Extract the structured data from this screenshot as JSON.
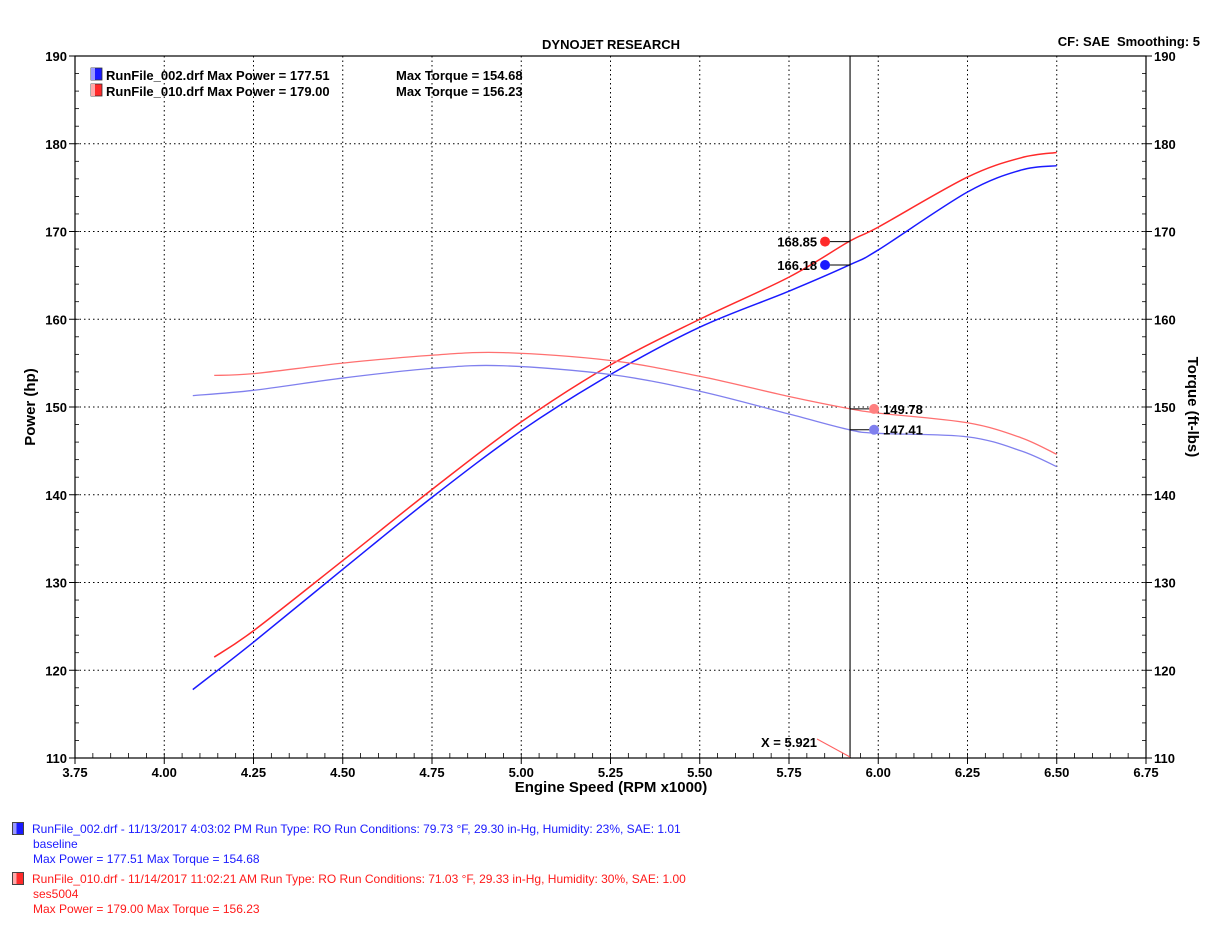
{
  "chart_data": {
    "type": "line",
    "title": "DYNOJET RESEARCH",
    "top_right_text": "CF: SAE  Smoothing: 5",
    "xlabel": "Engine Speed (RPM x1000)",
    "ylabel_left": "Power (hp)",
    "ylabel_right": "Torque (ft-lbs)",
    "xlim": [
      3.75,
      6.75
    ],
    "ylim": [
      110,
      190
    ],
    "x_ticks": [
      "3.75",
      "4.00",
      "4.25",
      "4.50",
      "4.75",
      "5.00",
      "5.25",
      "5.50",
      "5.75",
      "6.00",
      "6.25",
      "6.50",
      "6.75"
    ],
    "y_ticks": [
      "110",
      "120",
      "130",
      "140",
      "150",
      "160",
      "170",
      "180",
      "190"
    ],
    "grid": true,
    "legend_position": "top-left",
    "cursor": {
      "x": 5.921,
      "label": "X = 5.921"
    },
    "legend": [
      {
        "color": "#1a1aff",
        "file_text": "RunFile_002.drf Max Power = 177.51",
        "torque_text": "Max Torque = 154.68"
      },
      {
        "color": "#ff2a2a",
        "file_text": "RunFile_010.drf Max Power = 179.00",
        "torque_text": "Max Torque = 156.23"
      }
    ],
    "series": [
      {
        "name": "RunFile_002.drf",
        "measure": "power",
        "color": "#1a1aff",
        "x": [
          4.08,
          4.25,
          4.5,
          4.75,
          5.0,
          5.25,
          5.5,
          5.75,
          5.92,
          6.0,
          6.25,
          6.4,
          6.5
        ],
        "y": [
          117.8,
          123.2,
          131.5,
          139.7,
          147.3,
          153.7,
          159.1,
          163.2,
          166.2,
          167.9,
          174.5,
          177.0,
          177.5
        ]
      },
      {
        "name": "RunFile_010.drf",
        "measure": "power",
        "color": "#ff2a2a",
        "x": [
          4.14,
          4.25,
          4.5,
          4.75,
          5.0,
          5.25,
          5.5,
          5.75,
          5.92,
          6.0,
          6.25,
          6.4,
          6.5
        ],
        "y": [
          121.5,
          124.5,
          132.5,
          140.6,
          148.3,
          154.8,
          160.0,
          164.8,
          168.9,
          170.5,
          176.2,
          178.4,
          179.0
        ]
      },
      {
        "name": "RunFile_002.drf",
        "measure": "torque",
        "color": "#8080ee",
        "x": [
          4.08,
          4.25,
          4.5,
          4.75,
          4.95,
          5.25,
          5.5,
          5.75,
          5.92,
          6.0,
          6.25,
          6.4,
          6.5
        ],
        "y": [
          151.3,
          151.9,
          153.3,
          154.4,
          154.7,
          153.7,
          151.8,
          149.2,
          147.4,
          147.0,
          146.6,
          145.0,
          143.2
        ]
      },
      {
        "name": "RunFile_010.drf",
        "measure": "torque",
        "color": "#ff7070",
        "x": [
          4.14,
          4.25,
          4.5,
          4.75,
          4.95,
          5.25,
          5.5,
          5.75,
          5.92,
          6.0,
          6.25,
          6.4,
          6.5
        ],
        "y": [
          153.6,
          153.8,
          155.0,
          155.9,
          156.2,
          155.3,
          153.5,
          151.2,
          149.8,
          149.3,
          148.2,
          146.5,
          144.6
        ]
      }
    ],
    "cursor_values": [
      {
        "x": 5.921,
        "value": "168.85",
        "color": "#ff2a2a",
        "side": "left",
        "marker_y": 168.85,
        "line_y": 168.85,
        "text_y": 168.85
      },
      {
        "x": 5.921,
        "value": "166.18",
        "color": "#1a1aff",
        "side": "left",
        "marker_y": 166.18,
        "line_y": 166.18,
        "text_y": 166.18
      },
      {
        "x": 5.921,
        "value": "149.78",
        "color": "#ff8080",
        "side": "right",
        "marker_y": 149.78,
        "line_y": 149.78,
        "text_y": 149.78
      },
      {
        "x": 5.921,
        "value": "147.41",
        "color": "#8080ee",
        "side": "right",
        "marker_y": 147.41,
        "line_y": 147.41,
        "text_y": 147.41
      }
    ]
  },
  "footer": {
    "runs": [
      {
        "color": "#1a1aff",
        "line1": "RunFile_002.drf - 11/13/2017 4:03:02 PM  Run Type: RO  Run Conditions: 79.73 °F, 29.30 in-Hg,  Humidity:  23%, SAE: 1.01",
        "line2": "baseline",
        "line3": "Max Power = 177.51  Max Torque = 154.68"
      },
      {
        "color": "#ff2a2a",
        "line1": "RunFile_010.drf - 11/14/2017 11:02:21 AM  Run Type: RO  Run Conditions: 71.03 °F, 29.33 in-Hg,  Humidity:  30%, SAE: 1.00",
        "line2": "ses5004",
        "line3": "Max Power = 179.00  Max Torque = 156.23"
      }
    ]
  }
}
